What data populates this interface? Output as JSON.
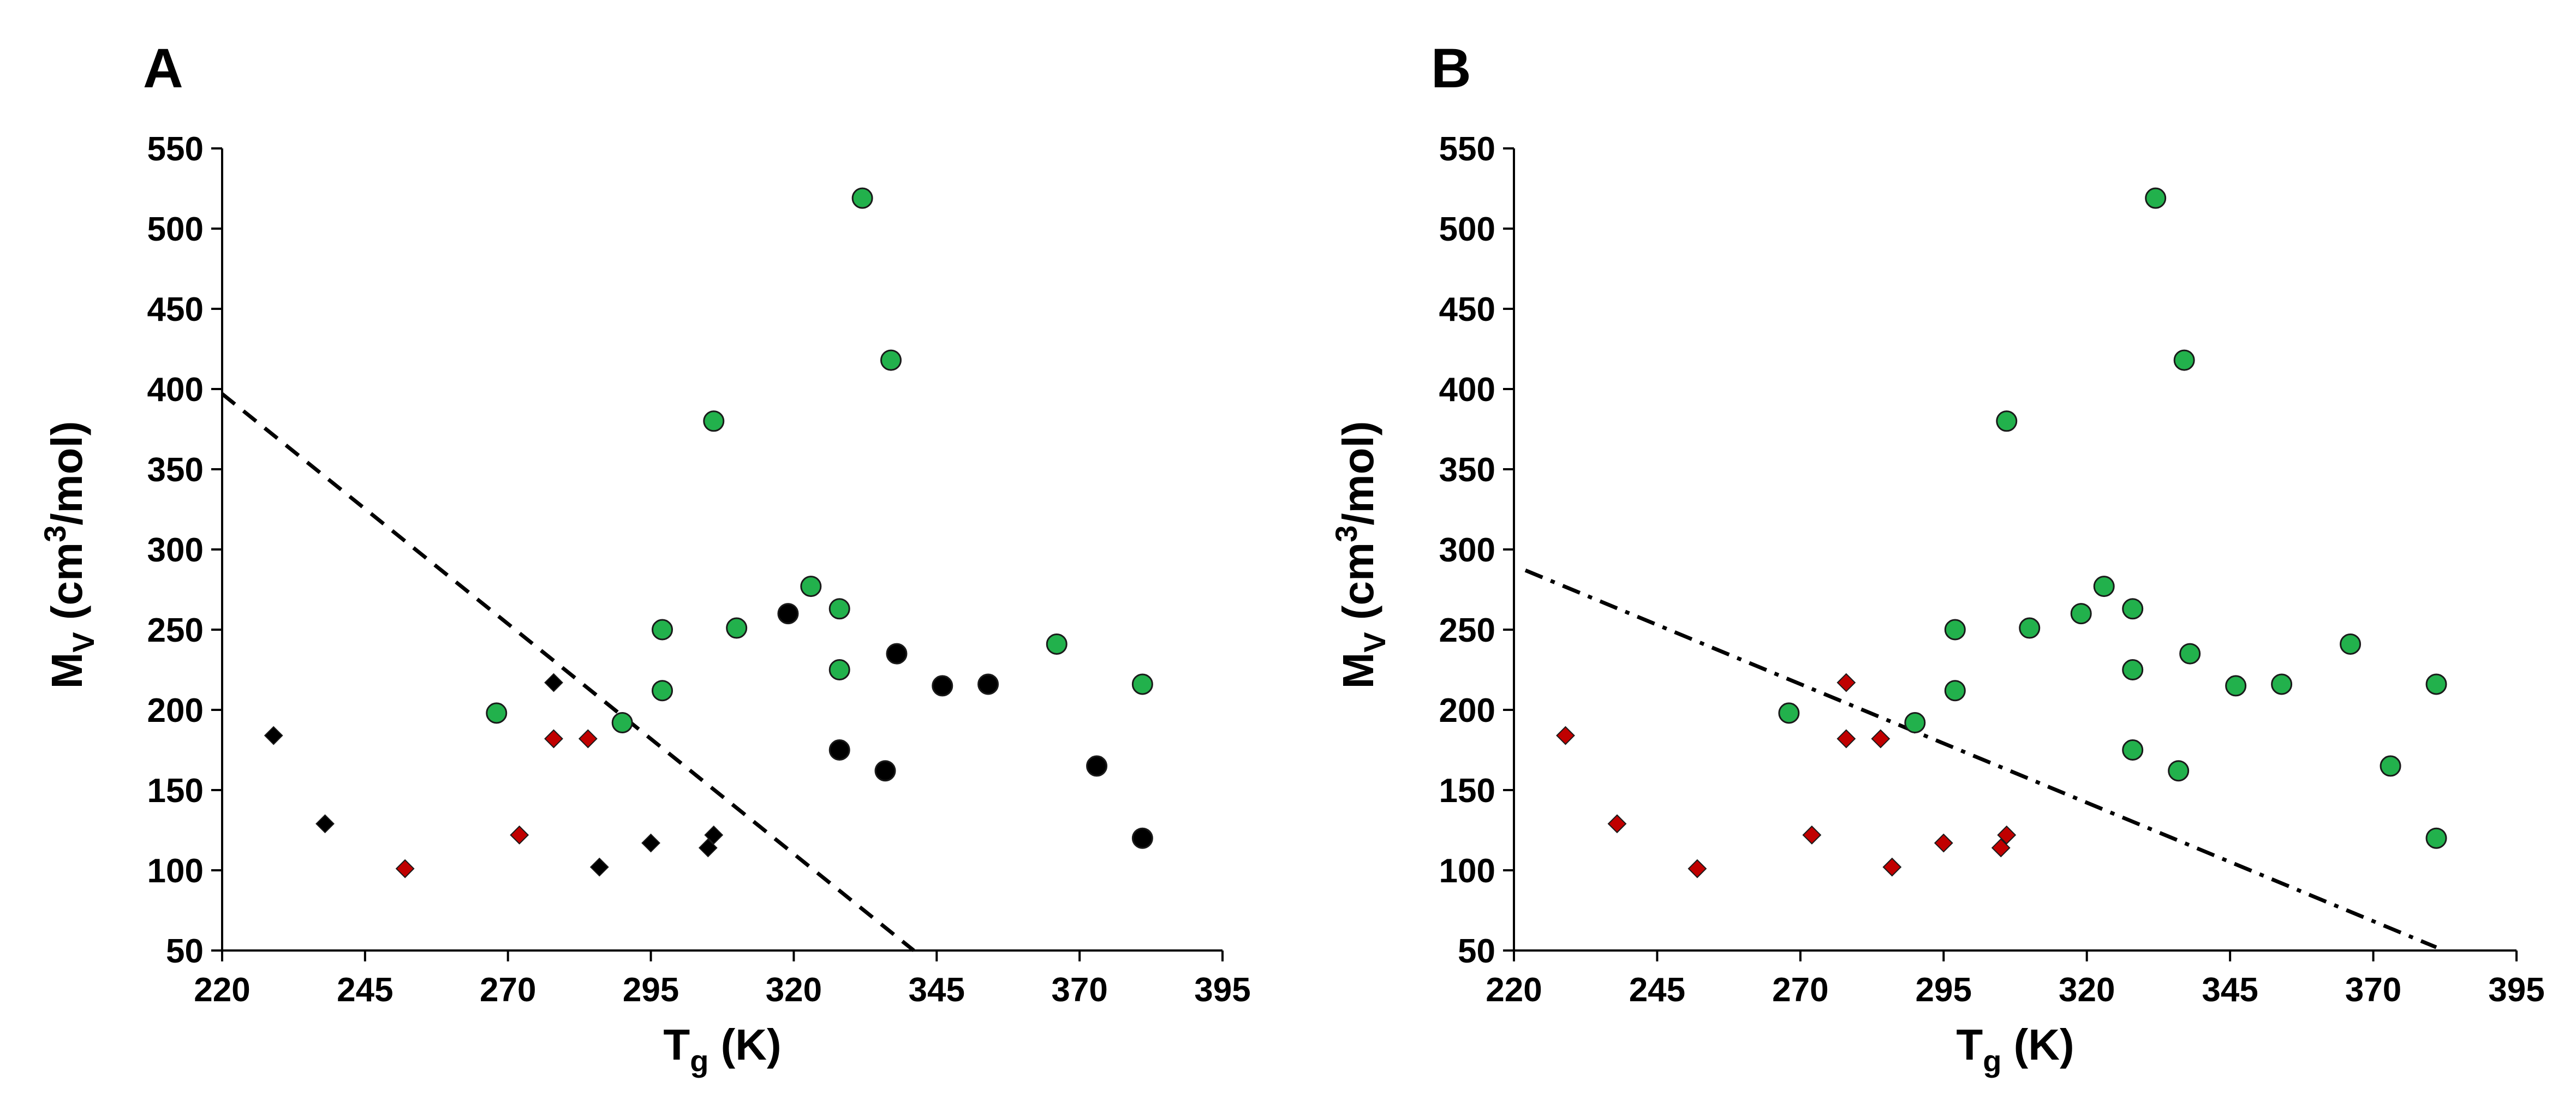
{
  "chart_data": [
    {
      "panel": "A",
      "type": "scatter",
      "xlabel": {
        "main": "T",
        "sub": "g",
        "rest": " (K)"
      },
      "ylabel": {
        "main": "M",
        "sub": "V",
        "rest": " (cm",
        "sup": "3",
        "tail": "/mol)"
      },
      "xlim": [
        220,
        395
      ],
      "ylim": [
        50,
        550
      ],
      "xticks": [
        "220",
        "245",
        "270",
        "295",
        "320",
        "345",
        "370",
        "395"
      ],
      "yticks": [
        "50",
        "100",
        "150",
        "200",
        "250",
        "300",
        "350",
        "400",
        "450",
        "500",
        "550"
      ],
      "grid": false,
      "series": [
        {
          "marker": "diamond",
          "color": "#000000",
          "points": [
            [
              229,
              184
            ],
            [
              238,
              129
            ],
            [
              278,
              217
            ],
            [
              286,
              102
            ],
            [
              295,
              117
            ],
            [
              305,
              114
            ],
            [
              306,
              122
            ]
          ]
        },
        {
          "marker": "diamond",
          "color": "#c00000",
          "points": [
            [
              252,
              101
            ],
            [
              272,
              122
            ],
            [
              278,
              182
            ],
            [
              284,
              182
            ]
          ]
        },
        {
          "marker": "circle",
          "color": "#000000",
          "points": [
            [
              319,
              260
            ],
            [
              328,
              175
            ],
            [
              336,
              162
            ],
            [
              338,
              235
            ],
            [
              346,
              215
            ],
            [
              354,
              216
            ],
            [
              373,
              165
            ],
            [
              381,
              120
            ]
          ]
        },
        {
          "marker": "circle",
          "color": "#22b14c",
          "points": [
            [
              268,
              198
            ],
            [
              290,
              192
            ],
            [
              297,
              250
            ],
            [
              297,
              212
            ],
            [
              306,
              380
            ],
            [
              310,
              251
            ],
            [
              323,
              277
            ],
            [
              328,
              263
            ],
            [
              328,
              225
            ],
            [
              332,
              519
            ],
            [
              337,
              418
            ],
            [
              366,
              241
            ],
            [
              381,
              216
            ]
          ]
        }
      ],
      "lines": [
        {
          "style": "dashed",
          "color": "#000000",
          "points": [
            [
              220,
              397
            ],
            [
              341,
              50
            ]
          ]
        }
      ]
    },
    {
      "panel": "B",
      "type": "scatter",
      "xlabel": {
        "main": "T",
        "sub": "g",
        "rest": " (K)"
      },
      "ylabel": {
        "main": "M",
        "sub": "V",
        "rest": " (cm",
        "sup": "3",
        "tail": "/mol)"
      },
      "xlim": [
        220,
        395
      ],
      "ylim": [
        50,
        550
      ],
      "xticks": [
        "220",
        "245",
        "270",
        "295",
        "320",
        "345",
        "370",
        "395"
      ],
      "yticks": [
        "50",
        "100",
        "150",
        "200",
        "250",
        "300",
        "350",
        "400",
        "450",
        "500",
        "550"
      ],
      "grid": false,
      "series": [
        {
          "marker": "diamond",
          "color": "#c00000",
          "points": [
            [
              229,
              184
            ],
            [
              238,
              129
            ],
            [
              252,
              101
            ],
            [
              272,
              122
            ],
            [
              278,
              217
            ],
            [
              278,
              182
            ],
            [
              284,
              182
            ],
            [
              286,
              102
            ],
            [
              295,
              117
            ],
            [
              305,
              114
            ],
            [
              306,
              122
            ]
          ]
        },
        {
          "marker": "circle",
          "color": "#22b14c",
          "points": [
            [
              268,
              198
            ],
            [
              290,
              192
            ],
            [
              297,
              250
            ],
            [
              297,
              212
            ],
            [
              306,
              380
            ],
            [
              310,
              251
            ],
            [
              319,
              260
            ],
            [
              323,
              277
            ],
            [
              328,
              175
            ],
            [
              328,
              263
            ],
            [
              328,
              225
            ],
            [
              332,
              519
            ],
            [
              336,
              162
            ],
            [
              337,
              418
            ],
            [
              338,
              235
            ],
            [
              346,
              215
            ],
            [
              354,
              216
            ],
            [
              366,
              241
            ],
            [
              373,
              165
            ],
            [
              381,
              216
            ],
            [
              381,
              120
            ]
          ]
        }
      ],
      "lines": [
        {
          "style": "dashdot",
          "color": "#000000",
          "points": [
            [
              222,
              287
            ],
            [
              381,
              52
            ]
          ]
        }
      ]
    }
  ]
}
